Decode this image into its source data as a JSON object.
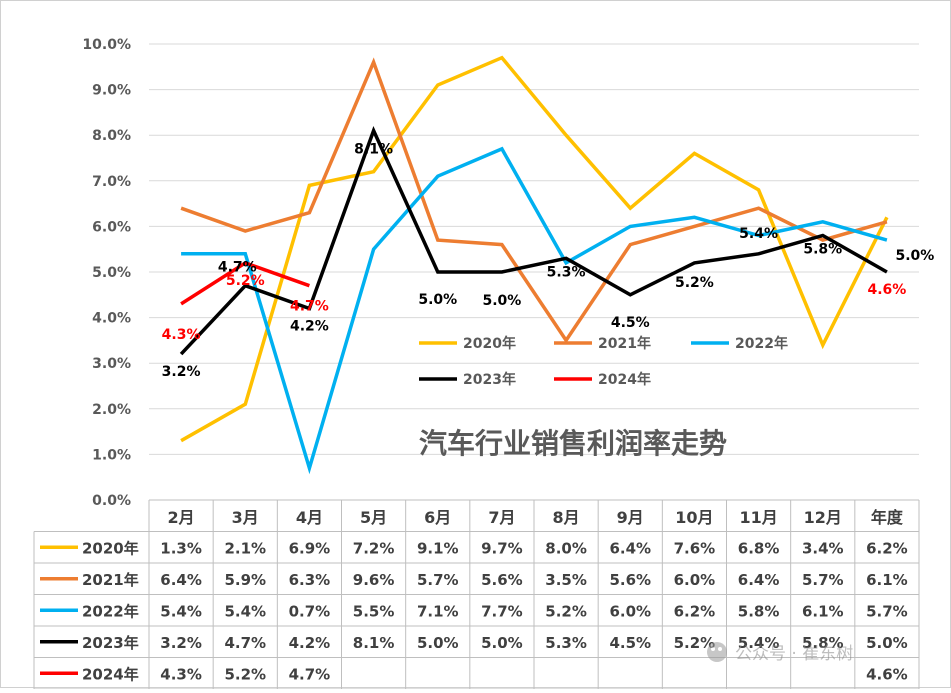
{
  "chart_data": {
    "type": "line",
    "title": "汽车行业销售利润率走势",
    "categories": [
      "2月",
      "3月",
      "4月",
      "5月",
      "6月",
      "7月",
      "8月",
      "9月",
      "10月",
      "11月",
      "12月",
      "年度"
    ],
    "ylim": [
      0,
      10
    ],
    "yticks": [
      0,
      1,
      2,
      3,
      4,
      5,
      6,
      7,
      8,
      9,
      10
    ],
    "ytick_labels": [
      "0.0%",
      "1.0%",
      "2.0%",
      "3.0%",
      "4.0%",
      "5.0%",
      "6.0%",
      "7.0%",
      "8.0%",
      "9.0%",
      "10.0%"
    ],
    "grid": true,
    "legend_position": "inside-center-right",
    "series": [
      {
        "name": "2020年",
        "color": "#FFC000",
        "values": [
          1.3,
          2.1,
          6.9,
          7.2,
          9.1,
          9.7,
          8.0,
          6.4,
          7.6,
          6.8,
          3.4,
          6.2
        ],
        "table_labels": [
          "1.3%",
          "2.1%",
          "6.9%",
          "7.2%",
          "9.1%",
          "9.7%",
          "8.0%",
          "6.4%",
          "7.6%",
          "6.8%",
          "3.4%",
          "6.2%"
        ]
      },
      {
        "name": "2021年",
        "color": "#ED7D31",
        "values": [
          6.4,
          5.9,
          6.3,
          9.6,
          5.7,
          5.6,
          3.5,
          5.6,
          6.0,
          6.4,
          5.7,
          6.1
        ],
        "table_labels": [
          "6.4%",
          "5.9%",
          "6.3%",
          "9.6%",
          "5.7%",
          "5.6%",
          "3.5%",
          "5.6%",
          "6.0%",
          "6.4%",
          "5.7%",
          "6.1%"
        ]
      },
      {
        "name": "2022年",
        "color": "#00B0F0",
        "values": [
          5.4,
          5.4,
          0.7,
          5.5,
          7.1,
          7.7,
          5.2,
          6.0,
          6.2,
          5.8,
          6.1,
          5.7
        ],
        "table_labels": [
          "5.4%",
          "5.4%",
          "0.7%",
          "5.5%",
          "7.1%",
          "7.7%",
          "5.2%",
          "6.0%",
          "6.2%",
          "5.8%",
          "6.1%",
          "5.7%"
        ]
      },
      {
        "name": "2023年",
        "color": "#000000",
        "values": [
          3.2,
          4.7,
          4.2,
          8.1,
          5.0,
          5.0,
          5.3,
          4.5,
          5.2,
          5.4,
          5.8,
          5.0
        ],
        "table_labels": [
          "3.2%",
          "4.7%",
          "4.2%",
          "8.1%",
          "5.0%",
          "5.0%",
          "5.3%",
          "4.5%",
          "5.2%",
          "5.4%",
          "5.8%",
          "5.0%"
        ]
      },
      {
        "name": "2024年",
        "color": "#FF0000",
        "values": [
          4.3,
          5.2,
          4.7,
          null,
          null,
          null,
          null,
          null,
          null,
          null,
          null,
          null
        ],
        "table_labels": [
          "4.3%",
          "5.2%",
          "4.7%",
          "",
          "",
          "",
          "",
          "",
          "",
          "",
          "",
          "4.6%"
        ],
        "annual_label": "4.6%"
      }
    ],
    "data_labels": {
      "2023年": [
        "3.2%",
        "4.7%",
        "4.2%",
        "8.1%",
        "5.0%",
        "5.0%",
        "5.3%",
        "4.5%",
        "5.2%",
        "5.4%",
        "5.8%",
        "5.0%"
      ],
      "2024年": [
        "4.3%",
        "5.2%",
        "4.7%"
      ],
      "2024年_annual": "4.6%"
    }
  },
  "watermark": {
    "text": "公众号 · 崔东树"
  }
}
